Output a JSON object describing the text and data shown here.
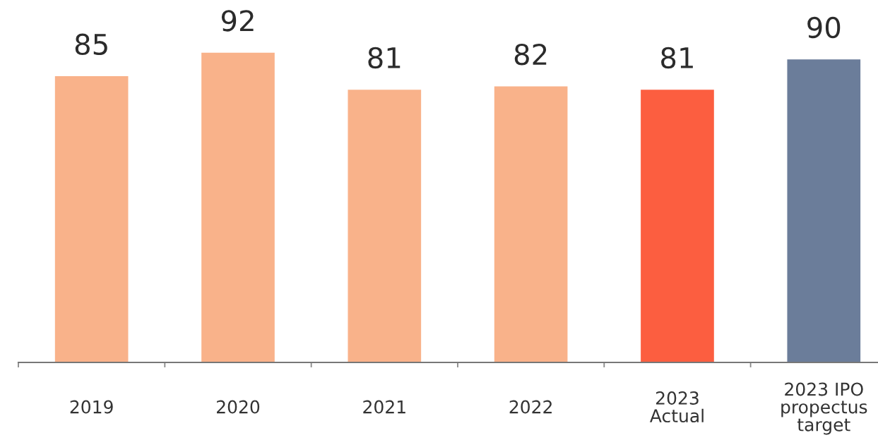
{
  "chart_data": {
    "type": "bar",
    "categories": [
      "2019",
      "2020",
      "2021",
      "2022",
      "2023\nActual",
      "2023 IPO\npropectus\ntarget"
    ],
    "values": [
      85,
      92,
      81,
      82,
      81,
      90
    ],
    "colors": [
      "#f9b28a",
      "#f9b28a",
      "#f9b28a",
      "#f9b28a",
      "#fc5e40",
      "#6b7d9a"
    ],
    "data_labels": true
  }
}
